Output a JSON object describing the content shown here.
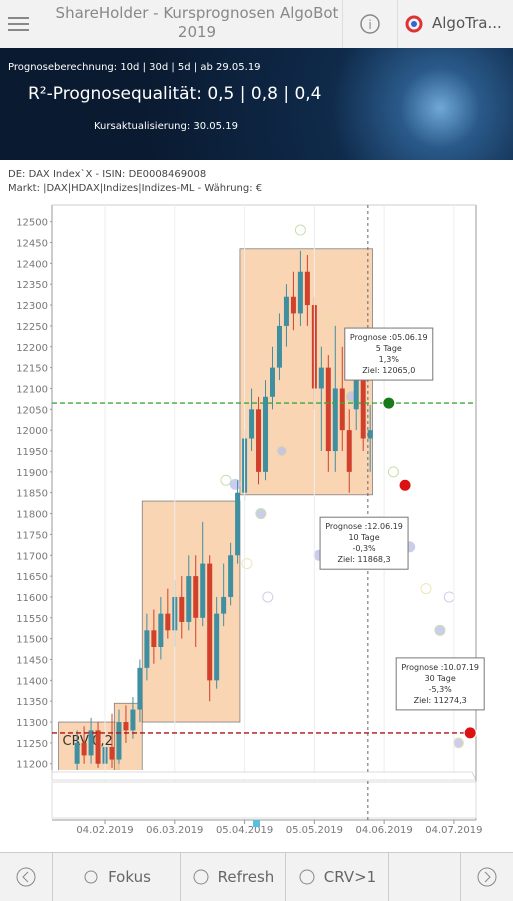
{
  "header": {
    "title": "ShareHolder - Kursprognosen  AlgoBot 2019",
    "brand": "AlgoTra..."
  },
  "banner": {
    "calc": "Prognoseberechnung: 10d | 30d | 5d | ab 29.05.19",
    "quality": "R²-Prognosequalität: 0,5 | 0,8 | 0,4",
    "update": "Kursaktualisierung: 30.05.19"
  },
  "info": [
    "DE: DAX Index`X - ISIN: DE0008469008",
    "Markt: |DAX|HDAX|Indizes|Indizes-ML - Währung: €"
  ],
  "chart_data": {
    "type": "candlestick",
    "grid": "x",
    "ylim": [
      11185,
      12540
    ],
    "yticks": [
      12500,
      12450,
      12400,
      12350,
      12300,
      12250,
      12200,
      12150,
      12100,
      12050,
      12000,
      11950,
      11900,
      11850,
      11800,
      11750,
      11700,
      11650,
      11600,
      11550,
      11500,
      11450,
      11400,
      11350,
      11300,
      11250,
      11200
    ],
    "xlim": [
      11.2,
      193.5
    ],
    "xticks": [
      {
        "value": 34,
        "label": "04.02.2019"
      },
      {
        "value": 64,
        "label": "06.03.2019"
      },
      {
        "value": 94,
        "label": "05.04.2019"
      },
      {
        "value": 124,
        "label": "05.05.2019"
      },
      {
        "value": 154,
        "label": "04.06.2019"
      },
      {
        "value": 184,
        "label": "04.07.2019"
      }
    ],
    "x": [
      22,
      25,
      28,
      31,
      34,
      37,
      40,
      43,
      46,
      49,
      52,
      55,
      58,
      61,
      64,
      67,
      70,
      73,
      76,
      79,
      82,
      85,
      88,
      91,
      94,
      97,
      100,
      103,
      106,
      109,
      112,
      115,
      118,
      121,
      124,
      127,
      130,
      133,
      136,
      139,
      142,
      145,
      148
    ],
    "open": [
      11200,
      11250,
      11220,
      11280,
      11200,
      11240,
      11210,
      11300,
      11280,
      11330,
      11430,
      11520,
      11480,
      11560,
      11520,
      11600,
      11540,
      11650,
      11550,
      11680,
      11400,
      11560,
      11600,
      11700,
      11850,
      11980,
      12050,
      11900,
      12080,
      12150,
      12250,
      12320,
      12280,
      12380,
      12300,
      12100,
      12150,
      11950,
      12100,
      12000,
      12050,
      12150,
      11980
    ],
    "high": [
      11280,
      11290,
      11310,
      11300,
      11270,
      11320,
      11330,
      11340,
      11360,
      11450,
      11560,
      11570,
      11600,
      11620,
      11640,
      11650,
      11700,
      11700,
      11780,
      11700,
      11600,
      11680,
      11730,
      11880,
      12000,
      12100,
      12080,
      12120,
      12200,
      12280,
      12350,
      12380,
      12430,
      12420,
      12320,
      12200,
      12180,
      12250,
      12200,
      12050,
      12200,
      12180,
      12060
    ],
    "low": [
      11180,
      11200,
      11200,
      11190,
      11190,
      11190,
      11200,
      11250,
      11260,
      11300,
      11400,
      11440,
      11450,
      11500,
      11480,
      11500,
      11520,
      11480,
      11530,
      11350,
      11380,
      11530,
      11580,
      11680,
      11830,
      11950,
      11870,
      11880,
      12050,
      12120,
      12200,
      12240,
      12250,
      12250,
      12050,
      11950,
      11900,
      11900,
      11950,
      11850,
      12000,
      11950,
      11900
    ],
    "close": [
      11250,
      11220,
      11280,
      11200,
      11240,
      11210,
      11300,
      11280,
      11330,
      11430,
      11520,
      11480,
      11560,
      11520,
      11600,
      11540,
      11650,
      11550,
      11680,
      11400,
      11560,
      11600,
      11700,
      11850,
      11980,
      12050,
      11900,
      12080,
      12150,
      12250,
      12320,
      12280,
      12380,
      12300,
      12100,
      12150,
      11950,
      12100,
      12000,
      11900,
      12150,
      11980,
      12000
    ],
    "up_color": "#3f8fa0",
    "down_color": "#d0402a",
    "boxes": [
      {
        "x": [
          14,
          40
        ],
        "y": [
          11150,
          11300
        ],
        "label": "CRV:0,2"
      },
      {
        "x": [
          38,
          50
        ],
        "y": [
          11150,
          11345
        ]
      },
      {
        "x": [
          50,
          92
        ],
        "y": [
          11300,
          11830
        ]
      },
      {
        "x": [
          92,
          149
        ],
        "y": [
          11845,
          12435
        ]
      }
    ],
    "history": {
      "x": [
        86,
        90,
        95,
        101,
        104,
        110,
        118,
        126,
        131,
        140,
        146,
        152,
        158,
        165,
        172,
        178,
        182,
        186
      ],
      "values": [
        11880,
        11870,
        11680,
        11800,
        11600,
        11950,
        12480,
        11700,
        12260,
        12080,
        12130,
        11780,
        11900,
        11720,
        11620,
        11520,
        11600,
        11250
      ]
    },
    "today": 147,
    "forecasts": [
      {
        "x": 156,
        "value": 12065,
        "color": "#1a7a1a",
        "line": "#3aaa3a",
        "lines": [
          "Prognose :05.06.19",
          "5 Tage",
          "1,3%",
          "Ziel: 12065,0"
        ]
      },
      {
        "x": 163,
        "value": 11868,
        "color": "#dd1111",
        "lines": [
          "Prognose :12.06.19",
          "10 Tage",
          "-0,3%",
          "Ziel: 11868,3"
        ]
      },
      {
        "x": 191,
        "value": 11274,
        "color": "#dd1111",
        "line": "#b01010",
        "lines": [
          "Prognose :10.07.19",
          "30 Tage",
          "-5,3%",
          "Ziel: 11274,3"
        ]
      }
    ]
  },
  "nav": [
    "Fokus",
    "Refresh",
    "CRV>1"
  ]
}
